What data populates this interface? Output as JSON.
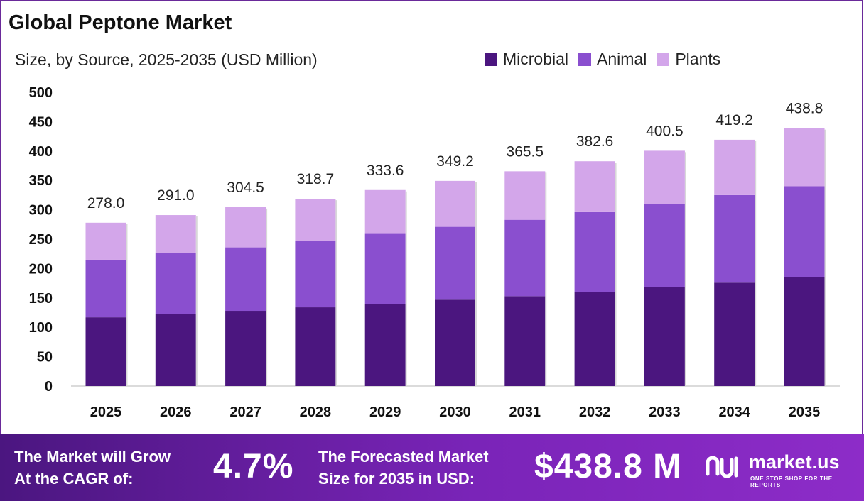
{
  "header": {
    "title": "Global Peptone Market",
    "subtitle": "Size, by Source, 2025-2035 (USD Million)"
  },
  "colors": {
    "microbial": "#4b167f",
    "animal": "#8a4fcf",
    "plants": "#d3a6ea",
    "footer_start": "#4b1680",
    "footer_end": "#8d2cc8"
  },
  "chart_data": {
    "type": "bar",
    "stacked": true,
    "categories": [
      "2025",
      "2026",
      "2027",
      "2028",
      "2029",
      "2030",
      "2031",
      "2032",
      "2033",
      "2034",
      "2035"
    ],
    "series": [
      {
        "name": "Microbial",
        "values": [
          117,
          122,
          128,
          134,
          140,
          147,
          153,
          160,
          168,
          176,
          185
        ]
      },
      {
        "name": "Animal",
        "values": [
          98,
          104,
          108,
          113,
          119,
          124,
          130,
          136,
          142,
          149,
          155
        ]
      },
      {
        "name": "Plants",
        "values": [
          63,
          65,
          68.5,
          71.7,
          74.6,
          78.2,
          82.5,
          86.6,
          90.5,
          94.2,
          98.8
        ]
      }
    ],
    "totals": [
      "278.0",
      "291.0",
      "304.5",
      "318.7",
      "333.6",
      "349.2",
      "365.5",
      "382.6",
      "400.5",
      "419.2",
      "438.8"
    ],
    "yticks": [
      0,
      50,
      100,
      150,
      200,
      250,
      300,
      350,
      400,
      450,
      500
    ],
    "ylim": [
      0,
      500
    ],
    "grid": false,
    "legend_position": "top-right"
  },
  "footer": {
    "cagr_line1": "The Market will Grow",
    "cagr_line2": "At the CAGR of:",
    "cagr_value": "4.7%",
    "size_line1": "The Forecasted Market",
    "size_line2": "Size for 2035 in USD:",
    "size_value": "$438.8 M",
    "brand_name": "market.us",
    "brand_tagline": "ONE STOP SHOP FOR THE REPORTS"
  }
}
